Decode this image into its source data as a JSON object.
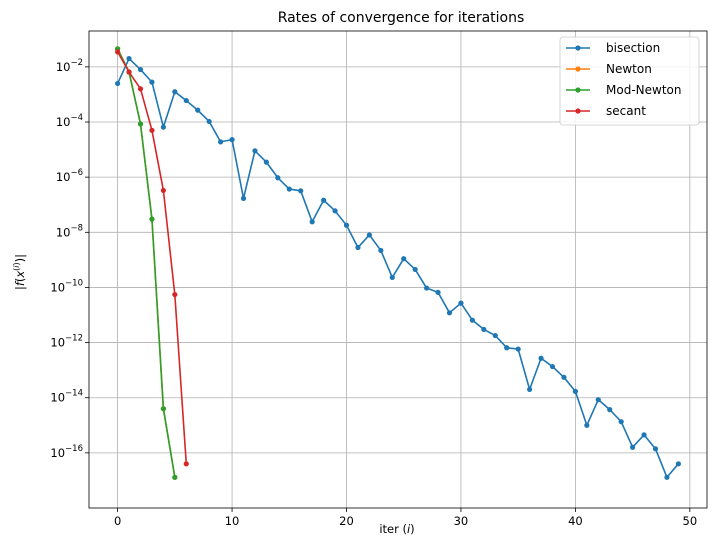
{
  "chart_data": {
    "type": "line",
    "title": "Rates of convergence for iterations",
    "xlabel": "iter (i)",
    "ylabel": "|f(x(i))|",
    "xlim": [
      -2.5,
      51.5
    ],
    "ylim": [
      1e-18,
      0.2
    ],
    "y_scale": "log",
    "x_ticks": [
      0,
      10,
      20,
      30,
      40,
      50
    ],
    "x_tick_labels": [
      "0",
      "10",
      "20",
      "30",
      "40",
      "50"
    ],
    "y_ticks": [
      -16,
      -14,
      -12,
      -10,
      -8,
      -6,
      -4,
      -2
    ],
    "y_tick_labels": [
      {
        "base": "10",
        "exp": "−16"
      },
      {
        "base": "10",
        "exp": "−14"
      },
      {
        "base": "10",
        "exp": "−12"
      },
      {
        "base": "10",
        "exp": "−10"
      },
      {
        "base": "10",
        "exp": "−8"
      },
      {
        "base": "10",
        "exp": "−6"
      },
      {
        "base": "10",
        "exp": "−4"
      },
      {
        "base": "10",
        "exp": "−2"
      }
    ],
    "grid": true,
    "legend_position": "top-right",
    "marker": "circle",
    "series": [
      {
        "name": "bisection",
        "color": "#1f77b4",
        "x": [
          0,
          1,
          2,
          3,
          4,
          5,
          6,
          7,
          8,
          9,
          10,
          11,
          12,
          13,
          14,
          15,
          16,
          17,
          18,
          19,
          20,
          21,
          22,
          23,
          24,
          25,
          26,
          27,
          28,
          29,
          30,
          31,
          32,
          33,
          34,
          35,
          36,
          37,
          38,
          39,
          40,
          41,
          42,
          43,
          44,
          45,
          46,
          47,
          48,
          49
        ],
        "y": [
          0.0025,
          0.02,
          0.008,
          0.0028,
          6.5e-05,
          0.00125,
          0.0006,
          0.00027,
          0.000105,
          1.9e-05,
          2.3e-05,
          1.7e-07,
          9e-06,
          3.5e-06,
          9.5e-07,
          3.7e-07,
          3.2e-07,
          2.4e-08,
          1.45e-07,
          6e-08,
          1.8e-08,
          2.8e-09,
          8e-09,
          2.2e-09,
          2.3e-10,
          1.1e-09,
          4.5e-10,
          9.5e-11,
          6.6e-11,
          1.2e-11,
          2.7e-11,
          6.5e-12,
          3e-12,
          1.8e-12,
          6.5e-13,
          5.8e-13,
          2e-14,
          2.7e-13,
          1.35e-13,
          5.5e-14,
          1.7e-14,
          1e-15,
          8.5e-15,
          3.7e-15,
          1.35e-15,
          1.6e-16,
          4.5e-16,
          1.4e-16,
          1.3e-17,
          4e-17
        ]
      },
      {
        "name": "Newton",
        "color": "#ff7f0e",
        "x": [
          0,
          1,
          2,
          3,
          4,
          5
        ],
        "y": [
          0.045,
          0.0065,
          8.5e-05,
          3e-08,
          4e-15,
          1.3e-17
        ]
      },
      {
        "name": "Mod-Newton",
        "color": "#2ca02c",
        "x": [
          0,
          1,
          2,
          3,
          4,
          5
        ],
        "y": [
          0.045,
          0.0065,
          8.5e-05,
          3e-08,
          4e-15,
          1.3e-17
        ]
      },
      {
        "name": "secant",
        "color": "#d62728",
        "x": [
          0,
          1,
          2,
          3,
          4,
          5,
          6
        ],
        "y": [
          0.035,
          0.0065,
          0.0016,
          5e-05,
          3.3e-07,
          5.5e-11,
          4e-17
        ]
      }
    ]
  }
}
